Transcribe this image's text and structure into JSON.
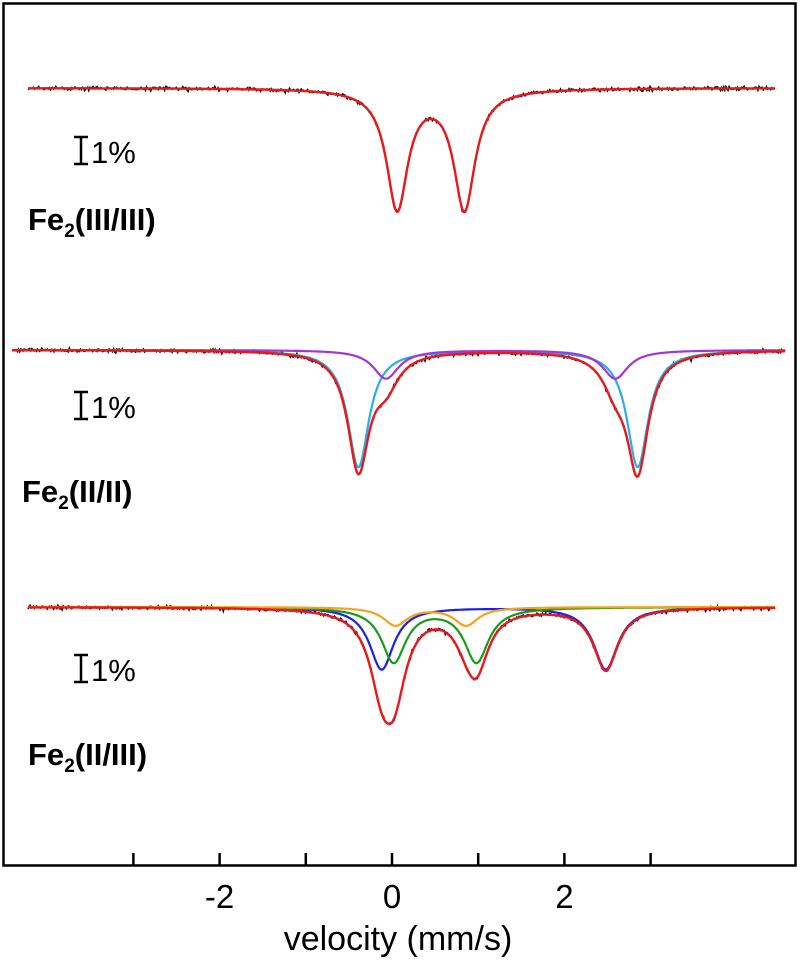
{
  "chart_data": {
    "type": "line",
    "xlabel": "velocity (mm/s)",
    "xlim": [
      -4.5,
      4.5
    ],
    "xticks_major": [
      -2,
      0,
      2
    ],
    "xticks_minor": [
      -3,
      -1,
      1,
      3
    ],
    "grid": false,
    "colors": {
      "data": "#000000",
      "total_fit": "#e8191c",
      "fe2_ii_ii_site_a": "#29aee8",
      "fe2_ii_ii_site_b": "#a335d6",
      "fe2_ii_iii_fe2": "#1c21e0",
      "fe2_ii_iii_fe3": "#1a9a1a",
      "fe2_ii_iii_minor": "#f5a31a"
    },
    "panels": [
      {
        "label_main": "Fe",
        "label_sub": "2",
        "label_rest": "(III/III)",
        "scale_label": "1%",
        "baseline": 1.0,
        "components": [
          {
            "name": "",
            "color": "total_fit",
            "delta": 0.45,
            "dEQ": 0.78,
            "depth": 0.046,
            "width": 0.3
          }
        ]
      },
      {
        "label_main": "Fe",
        "label_sub": "2",
        "label_rest": "(II/II)",
        "scale_label": "1%",
        "baseline": 1.0,
        "components": [
          {
            "name": "",
            "color": "fe2_ii_ii_site_a",
            "delta": 1.23,
            "dEQ": 3.24,
            "depth": 0.045,
            "width": 0.3
          },
          {
            "name": "",
            "color": "fe2_ii_ii_site_b",
            "delta": 1.26,
            "dEQ": 2.66,
            "depth": 0.011,
            "width": 0.36
          }
        ]
      },
      {
        "label_main": "Fe",
        "label_sub": "2",
        "label_rest": "(II/III)",
        "scale_label": "1%",
        "baseline": 1.0,
        "components": [
          {
            "name": "",
            "color": "fe2_ii_iii_fe2",
            "delta": 1.18,
            "dEQ": 2.6,
            "depth": 0.024,
            "width": 0.34
          },
          {
            "name": "",
            "color": "fe2_ii_iii_fe3",
            "delta": 0.5,
            "dEQ": 0.96,
            "depth": 0.021,
            "width": 0.34
          },
          {
            "name": "",
            "color": "fe2_ii_iii_minor",
            "delta": 0.45,
            "dEQ": 0.82,
            "depth": 0.007,
            "width": 0.34
          }
        ]
      }
    ]
  }
}
